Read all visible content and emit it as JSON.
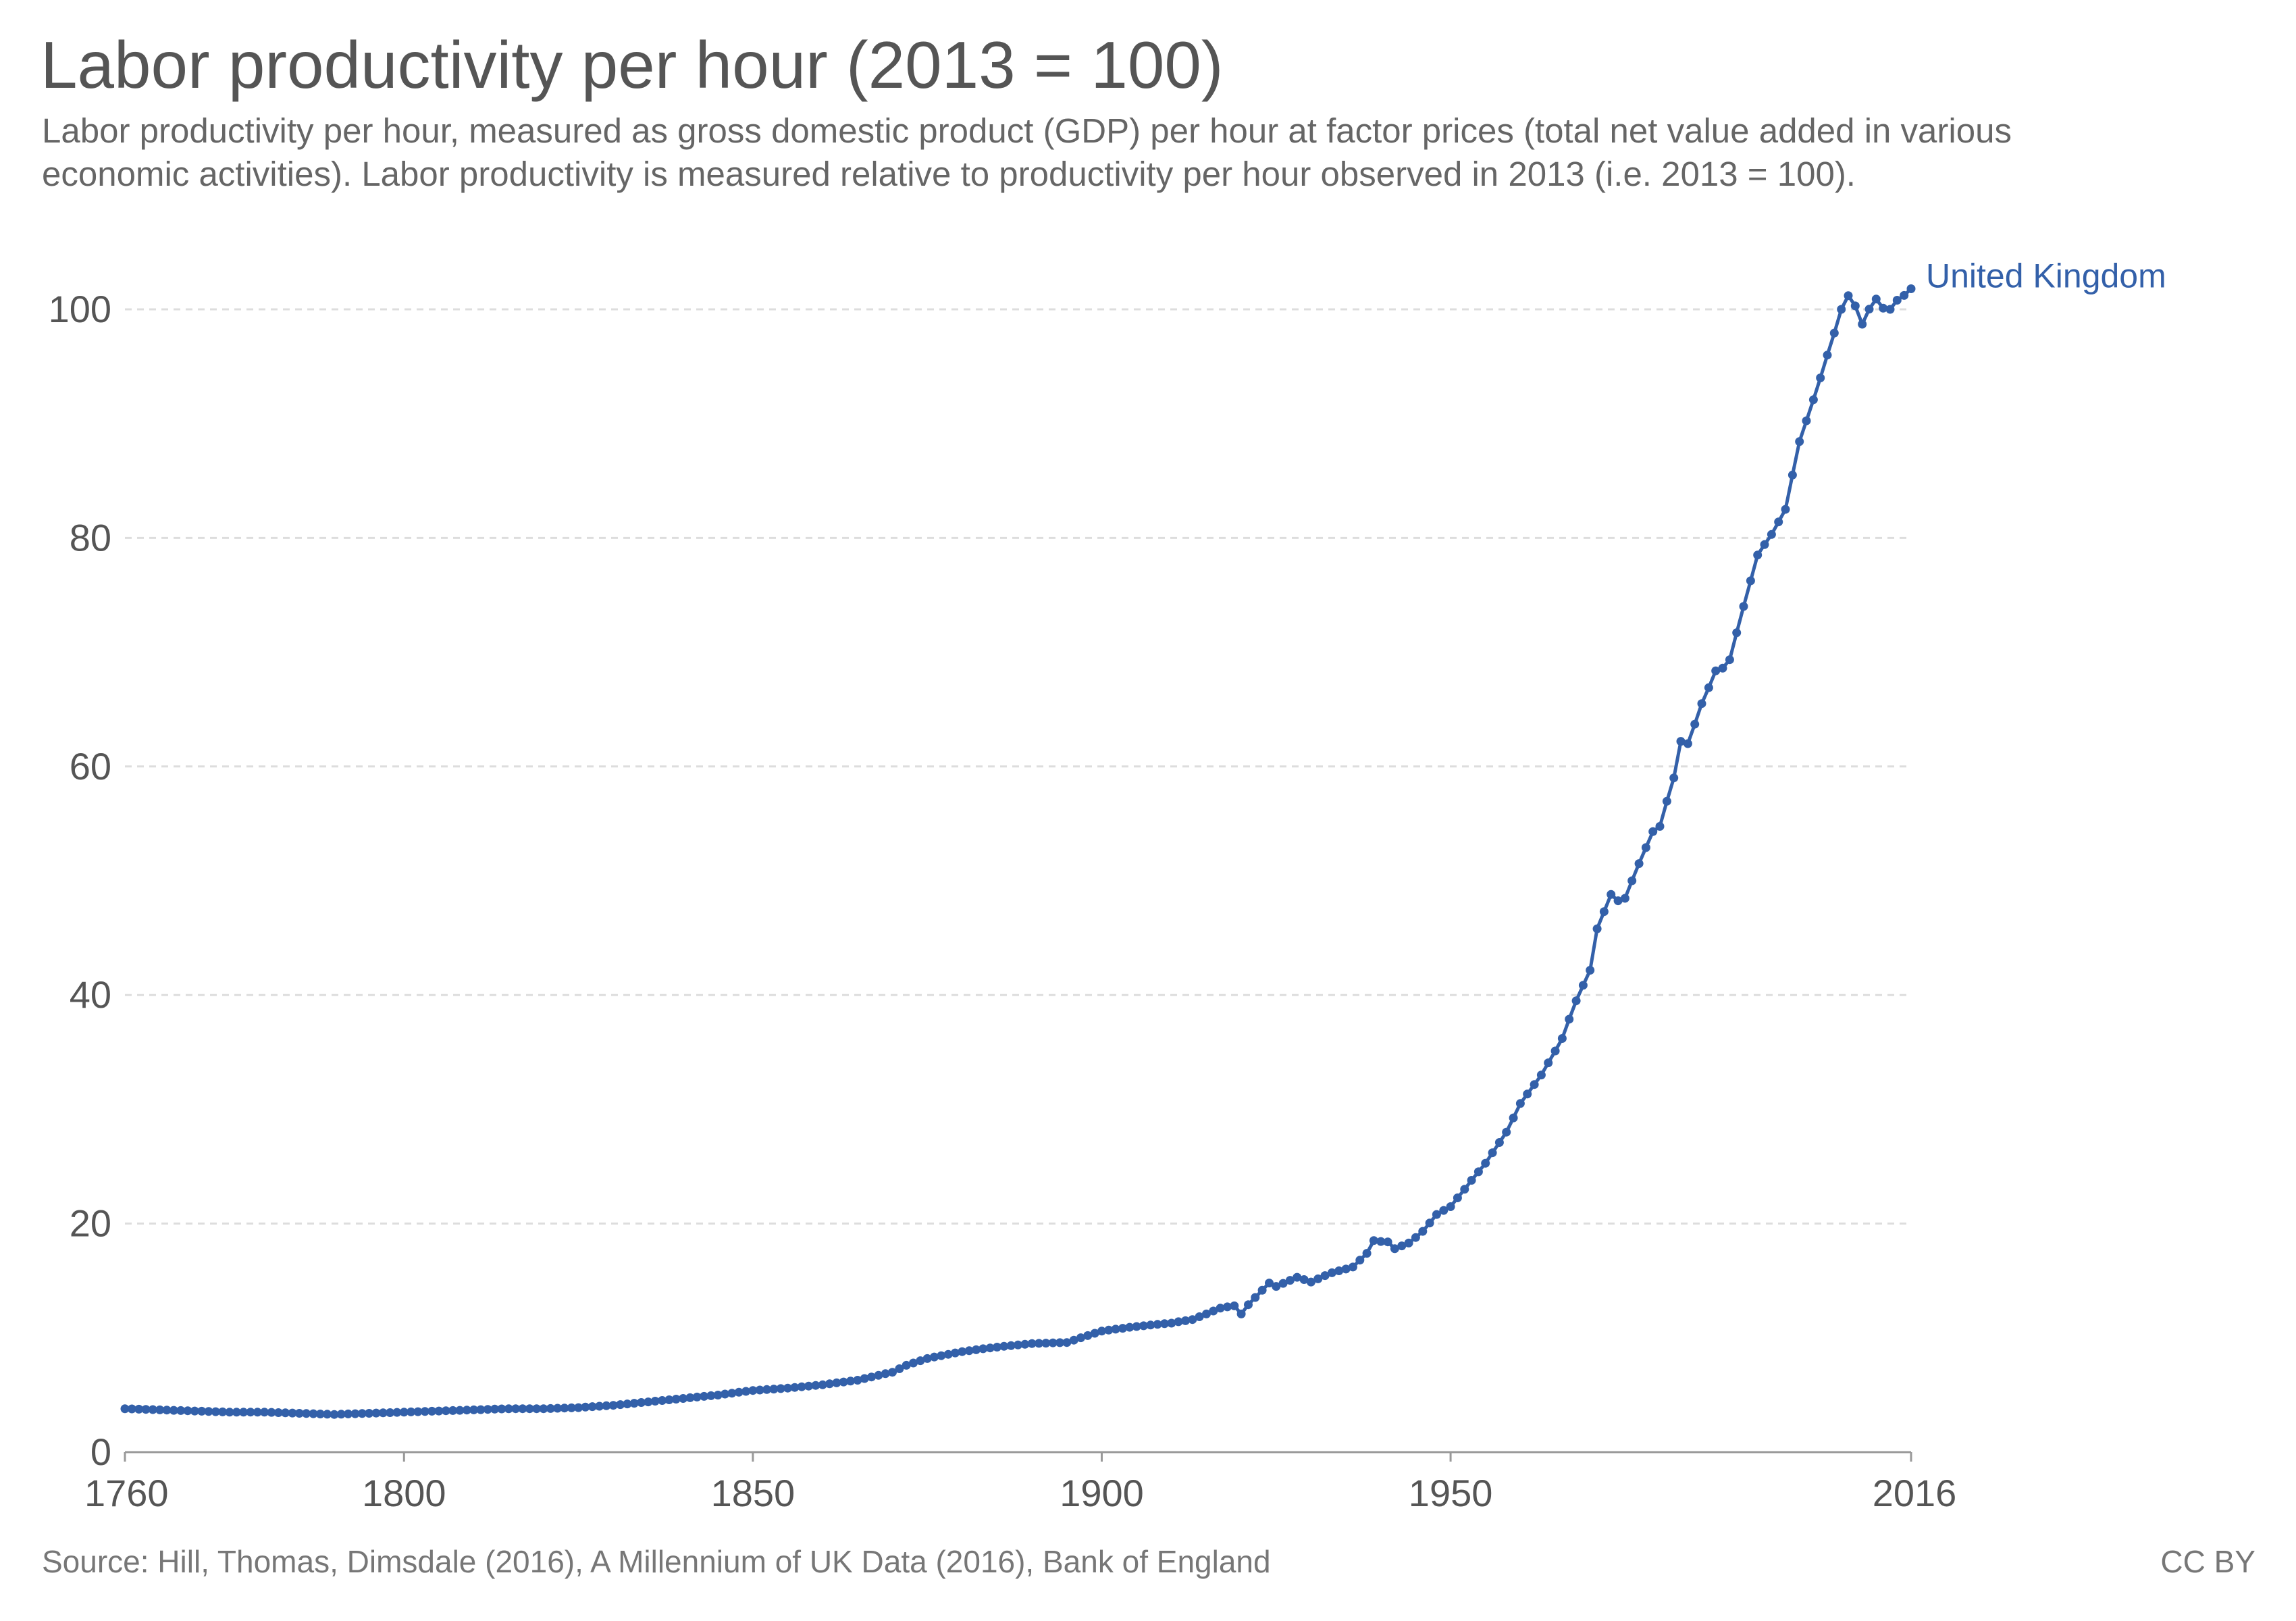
{
  "title": "Labor productivity per hour (2013 = 100)",
  "subtitle": "Labor productivity per hour, measured as gross domestic product (GDP) per hour at factor prices (total net value added in various economic activities). Labor productivity is measured relative to productivity per hour observed in 2013 (i.e. 2013 = 100).",
  "source": "Source: Hill, Thomas, Dimsdale (2016), A Millennium of UK Data (2016), Bank of England",
  "license": "CC BY",
  "colors": {
    "series": "#3360a9",
    "grid": "#dddddd",
    "text": "#555555"
  },
  "chart_data": {
    "type": "line",
    "title": "Labor productivity per hour (2013 = 100)",
    "xlim": [
      1760,
      2016
    ],
    "ylim": [
      0,
      100
    ],
    "x_ticks": [
      1760,
      1800,
      1850,
      1900,
      1950,
      2016
    ],
    "y_ticks": [
      0,
      20,
      40,
      60,
      80,
      100
    ],
    "grid": "horizontal dashed",
    "legend": "inline label at line end",
    "series": [
      {
        "name": "United Kingdom",
        "anchors": [
          [
            1760,
            3.8
          ],
          [
            1765,
            3.7
          ],
          [
            1770,
            3.6
          ],
          [
            1775,
            3.5
          ],
          [
            1780,
            3.5
          ],
          [
            1785,
            3.4
          ],
          [
            1790,
            3.3
          ],
          [
            1795,
            3.4
          ],
          [
            1800,
            3.5
          ],
          [
            1805,
            3.6
          ],
          [
            1810,
            3.7
          ],
          [
            1815,
            3.8
          ],
          [
            1820,
            3.8
          ],
          [
            1825,
            3.9
          ],
          [
            1830,
            4.1
          ],
          [
            1835,
            4.4
          ],
          [
            1840,
            4.7
          ],
          [
            1845,
            5.0
          ],
          [
            1850,
            5.4
          ],
          [
            1855,
            5.6
          ],
          [
            1860,
            5.9
          ],
          [
            1865,
            6.3
          ],
          [
            1870,
            7.0
          ],
          [
            1872,
            7.6
          ],
          [
            1875,
            8.2
          ],
          [
            1880,
            8.8
          ],
          [
            1885,
            9.2
          ],
          [
            1890,
            9.5
          ],
          [
            1895,
            9.6
          ],
          [
            1900,
            10.6
          ],
          [
            1905,
            11.0
          ],
          [
            1910,
            11.3
          ],
          [
            1913,
            11.6
          ],
          [
            1917,
            12.6
          ],
          [
            1919,
            12.8
          ],
          [
            1920,
            12.1
          ],
          [
            1921,
            12.9
          ],
          [
            1924,
            14.8
          ],
          [
            1925,
            14.5
          ],
          [
            1928,
            15.3
          ],
          [
            1930,
            14.9
          ],
          [
            1933,
            15.7
          ],
          [
            1936,
            16.2
          ],
          [
            1938,
            17.4
          ],
          [
            1939,
            18.5
          ],
          [
            1941,
            18.4
          ],
          [
            1942,
            17.8
          ],
          [
            1944,
            18.3
          ],
          [
            1946,
            19.3
          ],
          [
            1948,
            20.8
          ],
          [
            1950,
            21.5
          ],
          [
            1952,
            23.0
          ],
          [
            1955,
            25.3
          ],
          [
            1958,
            28.0
          ],
          [
            1960,
            30.5
          ],
          [
            1963,
            33.0
          ],
          [
            1966,
            36.2
          ],
          [
            1968,
            39.5
          ],
          [
            1970,
            42.2
          ],
          [
            1971,
            45.8
          ],
          [
            1973,
            48.8
          ],
          [
            1974,
            48.2
          ],
          [
            1975,
            48.5
          ],
          [
            1977,
            51.5
          ],
          [
            1979,
            54.3
          ],
          [
            1980,
            54.8
          ],
          [
            1982,
            59.0
          ],
          [
            1983,
            62.2
          ],
          [
            1984,
            62.0
          ],
          [
            1986,
            65.5
          ],
          [
            1988,
            68.3
          ],
          [
            1989,
            68.6
          ],
          [
            1990,
            69.4
          ],
          [
            1992,
            74.0
          ],
          [
            1994,
            78.5
          ],
          [
            1996,
            80.3
          ],
          [
            1998,
            82.5
          ],
          [
            2000,
            88.5
          ],
          [
            2002,
            92.0
          ],
          [
            2004,
            96.0
          ],
          [
            2006,
            100.0
          ],
          [
            2007,
            101.2
          ],
          [
            2008,
            100.3
          ],
          [
            2009,
            98.6
          ],
          [
            2010,
            100.1
          ],
          [
            2011,
            100.9
          ],
          [
            2012,
            100.1
          ],
          [
            2013,
            100.0
          ],
          [
            2014,
            100.8
          ],
          [
            2015,
            101.3
          ],
          [
            2016,
            101.8
          ]
        ]
      }
    ]
  }
}
